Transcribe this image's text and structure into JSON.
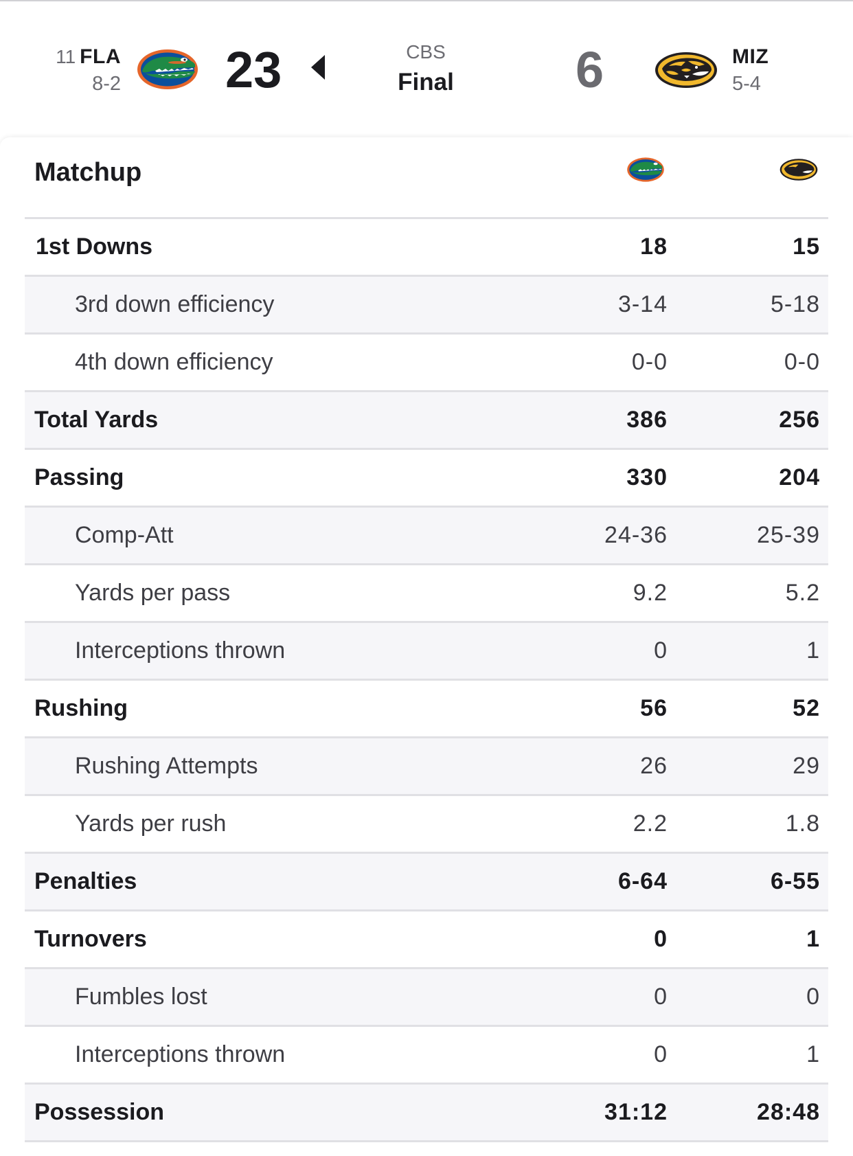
{
  "game": {
    "broadcast": "CBS",
    "status": "Final",
    "away": {
      "rank": "11",
      "abbr": "FLA",
      "record": "8-2",
      "score": "23",
      "logo_icon": "gator-logo-icon",
      "primary_color": "#0b4f9c",
      "secondary_color": "#e5662b"
    },
    "home": {
      "abbr": "MIZ",
      "record": "5-4",
      "score": "6",
      "logo_icon": "tiger-logo-icon",
      "primary_color": "#231f20",
      "secondary_color": "#f1b82d"
    }
  },
  "matchup": {
    "title": "Matchup",
    "rows": [
      {
        "label": "1st Downs",
        "away": "18",
        "home": "15",
        "type": "main"
      },
      {
        "label": "3rd down efficiency",
        "away": "3-14",
        "home": "5-18",
        "type": "sub"
      },
      {
        "label": "4th down efficiency",
        "away": "0-0",
        "home": "0-0",
        "type": "sub"
      },
      {
        "label": "Total Yards",
        "away": "386",
        "home": "256",
        "type": "main"
      },
      {
        "label": "Passing",
        "away": "330",
        "home": "204",
        "type": "main"
      },
      {
        "label": "Comp-Att",
        "away": "24-36",
        "home": "25-39",
        "type": "sub"
      },
      {
        "label": "Yards per pass",
        "away": "9.2",
        "home": "5.2",
        "type": "sub"
      },
      {
        "label": "Interceptions thrown",
        "away": "0",
        "home": "1",
        "type": "sub"
      },
      {
        "label": "Rushing",
        "away": "56",
        "home": "52",
        "type": "main"
      },
      {
        "label": "Rushing Attempts",
        "away": "26",
        "home": "29",
        "type": "sub"
      },
      {
        "label": "Yards per rush",
        "away": "2.2",
        "home": "1.8",
        "type": "sub"
      },
      {
        "label": "Penalties",
        "away": "6-64",
        "home": "6-55",
        "type": "main"
      },
      {
        "label": "Turnovers",
        "away": "0",
        "home": "1",
        "type": "main"
      },
      {
        "label": "Fumbles lost",
        "away": "0",
        "home": "0",
        "type": "sub"
      },
      {
        "label": "Interceptions thrown",
        "away": "0",
        "home": "1",
        "type": "sub"
      },
      {
        "label": "Possession",
        "away": "31:12",
        "home": "28:48",
        "type": "main"
      }
    ]
  }
}
